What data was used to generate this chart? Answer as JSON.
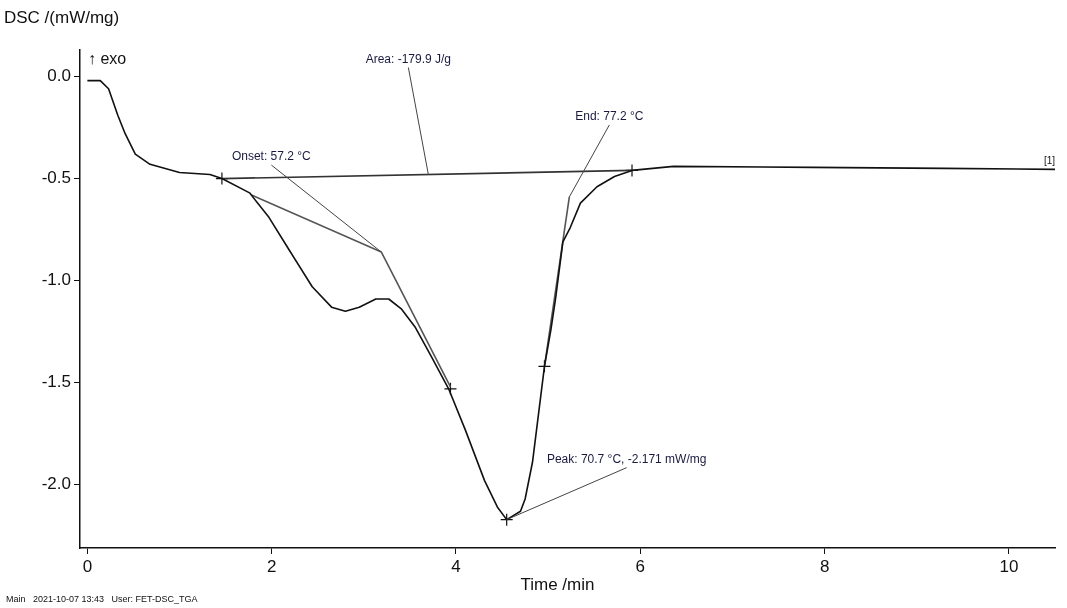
{
  "chart_data": {
    "type": "line",
    "xlabel": "Time /min",
    "ylabel": "DSC /(mW/mg)",
    "xlim": [
      -0.08,
      10.5
    ],
    "xticks": [
      0,
      2,
      4,
      6,
      8,
      10
    ],
    "ylim": [
      -2.31,
      0.13
    ],
    "yticks": [
      {
        "value": 0,
        "label": "0.0"
      },
      {
        "value": -0.5,
        "label": "-0.5"
      },
      {
        "value": -1,
        "label": "-1.0"
      },
      {
        "value": -1.5,
        "label": "-1.5"
      },
      {
        "value": -2,
        "label": "-2.0"
      }
    ],
    "grid": false,
    "legend": false,
    "marker": "none",
    "series": [
      {
        "color": "#111111",
        "x": [
          0.0,
          0.09,
          0.14,
          0.23,
          0.33,
          0.41,
          0.52,
          0.68,
          1.0,
          1.33,
          1.46,
          1.76,
          1.97,
          2.19,
          2.44,
          2.65,
          2.8,
          2.95,
          3.13,
          3.27,
          3.41,
          3.56,
          3.73,
          3.92,
          4.1,
          4.31,
          4.45,
          4.55,
          4.7,
          4.75,
          4.83,
          4.96,
          5.03,
          5.08,
          5.16,
          5.24,
          5.35,
          5.53,
          5.72,
          5.91,
          6.36,
          7.87,
          9.3,
          10.5
        ],
        "values": [
          -0.02,
          -0.02,
          -0.02,
          -0.06,
          -0.19,
          -0.28,
          -0.38,
          -0.43,
          -0.47,
          -0.48,
          -0.5,
          -0.57,
          -0.69,
          -0.85,
          -1.03,
          -1.13,
          -1.15,
          -1.13,
          -1.09,
          -1.09,
          -1.14,
          -1.23,
          -1.37,
          -1.53,
          -1.73,
          -1.98,
          -2.11,
          -2.171,
          -2.13,
          -2.07,
          -1.89,
          -1.42,
          -1.24,
          -1.09,
          -0.81,
          -0.74,
          -0.62,
          -0.54,
          -0.49,
          -0.46,
          -0.44,
          -0.445,
          -0.45,
          -0.455
        ]
      },
      {
        "color": "#333333",
        "x": [
          1.46,
          5.91
        ],
        "values": [
          -0.5,
          -0.46
        ]
      },
      {
        "color": "#555555",
        "x": [
          1.78,
          3.19,
          3.94
        ],
        "values": [
          -0.58,
          -0.86,
          -1.52
        ]
      },
      {
        "color": "#555555",
        "x": [
          4.96,
          5.23
        ],
        "values": [
          -1.42,
          -0.59
        ]
      },
      {
        "type": "scatter",
        "marker": "cross",
        "color": "#111111",
        "x": [
          1.46,
          5.91,
          4.55,
          3.94,
          4.96
        ],
        "values": [
          -0.5,
          -0.46,
          -2.171,
          -1.53,
          -1.42
        ]
      }
    ],
    "annotations": [
      "↑ exo",
      "[1]",
      {
        "text": "Onset: 57.2 °C",
        "x": 3.19,
        "y": -0.86
      },
      {
        "text": "Area: -179.9 J/g",
        "x": 3.7,
        "y": -0.48
      },
      {
        "text": "End: 77.2 °C",
        "x": 5.23,
        "y": -0.59
      },
      {
        "text": "Peak: 70.7 °C, -2.171 mW/mg",
        "x": 4.55,
        "y": -2.171
      },
      "Main   2021-10-07 13:43   User: FET-DSC_TGA"
    ]
  }
}
